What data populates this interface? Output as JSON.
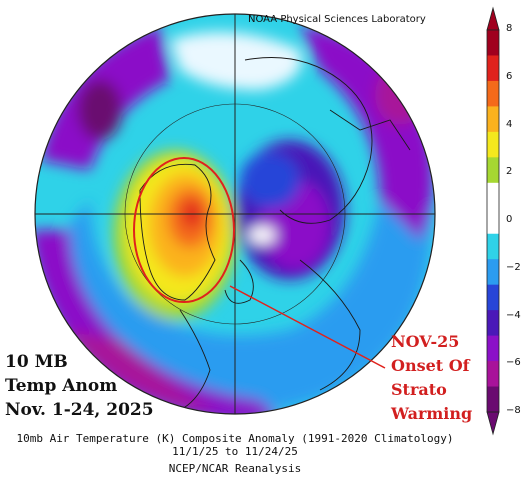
{
  "header": {
    "credit": "NOAA Physical Sciences Laboratory"
  },
  "left_labels": {
    "line1": "10 MB",
    "line2": "Temp Anom",
    "line3": "Nov. 1-24, 2025"
  },
  "annotation": {
    "line1": "NOV-25",
    "line2": "Onset Of",
    "line3": "Strato",
    "line4": "Warming"
  },
  "caption": {
    "line1": "10mb Air Temperature (K) Composite Anomaly (1991-2020 Climatology)",
    "line2": "11/1/25 to 11/24/25",
    "line3": "NCEP/NCAR Reanalysis"
  },
  "colorbar": {
    "ticks": [
      "8",
      "6",
      "4",
      "2",
      "0",
      "−2",
      "−4",
      "−6",
      "−8"
    ],
    "colors": [
      "#a0001e",
      "#e0221c",
      "#f46a1a",
      "#fbb21e",
      "#f4e81e",
      "#a6d832",
      "#ffffff",
      "#ffffff",
      "#2fd2e8",
      "#2b9cf0",
      "#2845d8",
      "#4a18b8",
      "#8b10c8",
      "#a8129a",
      "#6a0a70"
    ]
  },
  "map": {
    "highlight_color": "#e0221c",
    "ocean_color": "#2fd2e8"
  }
}
